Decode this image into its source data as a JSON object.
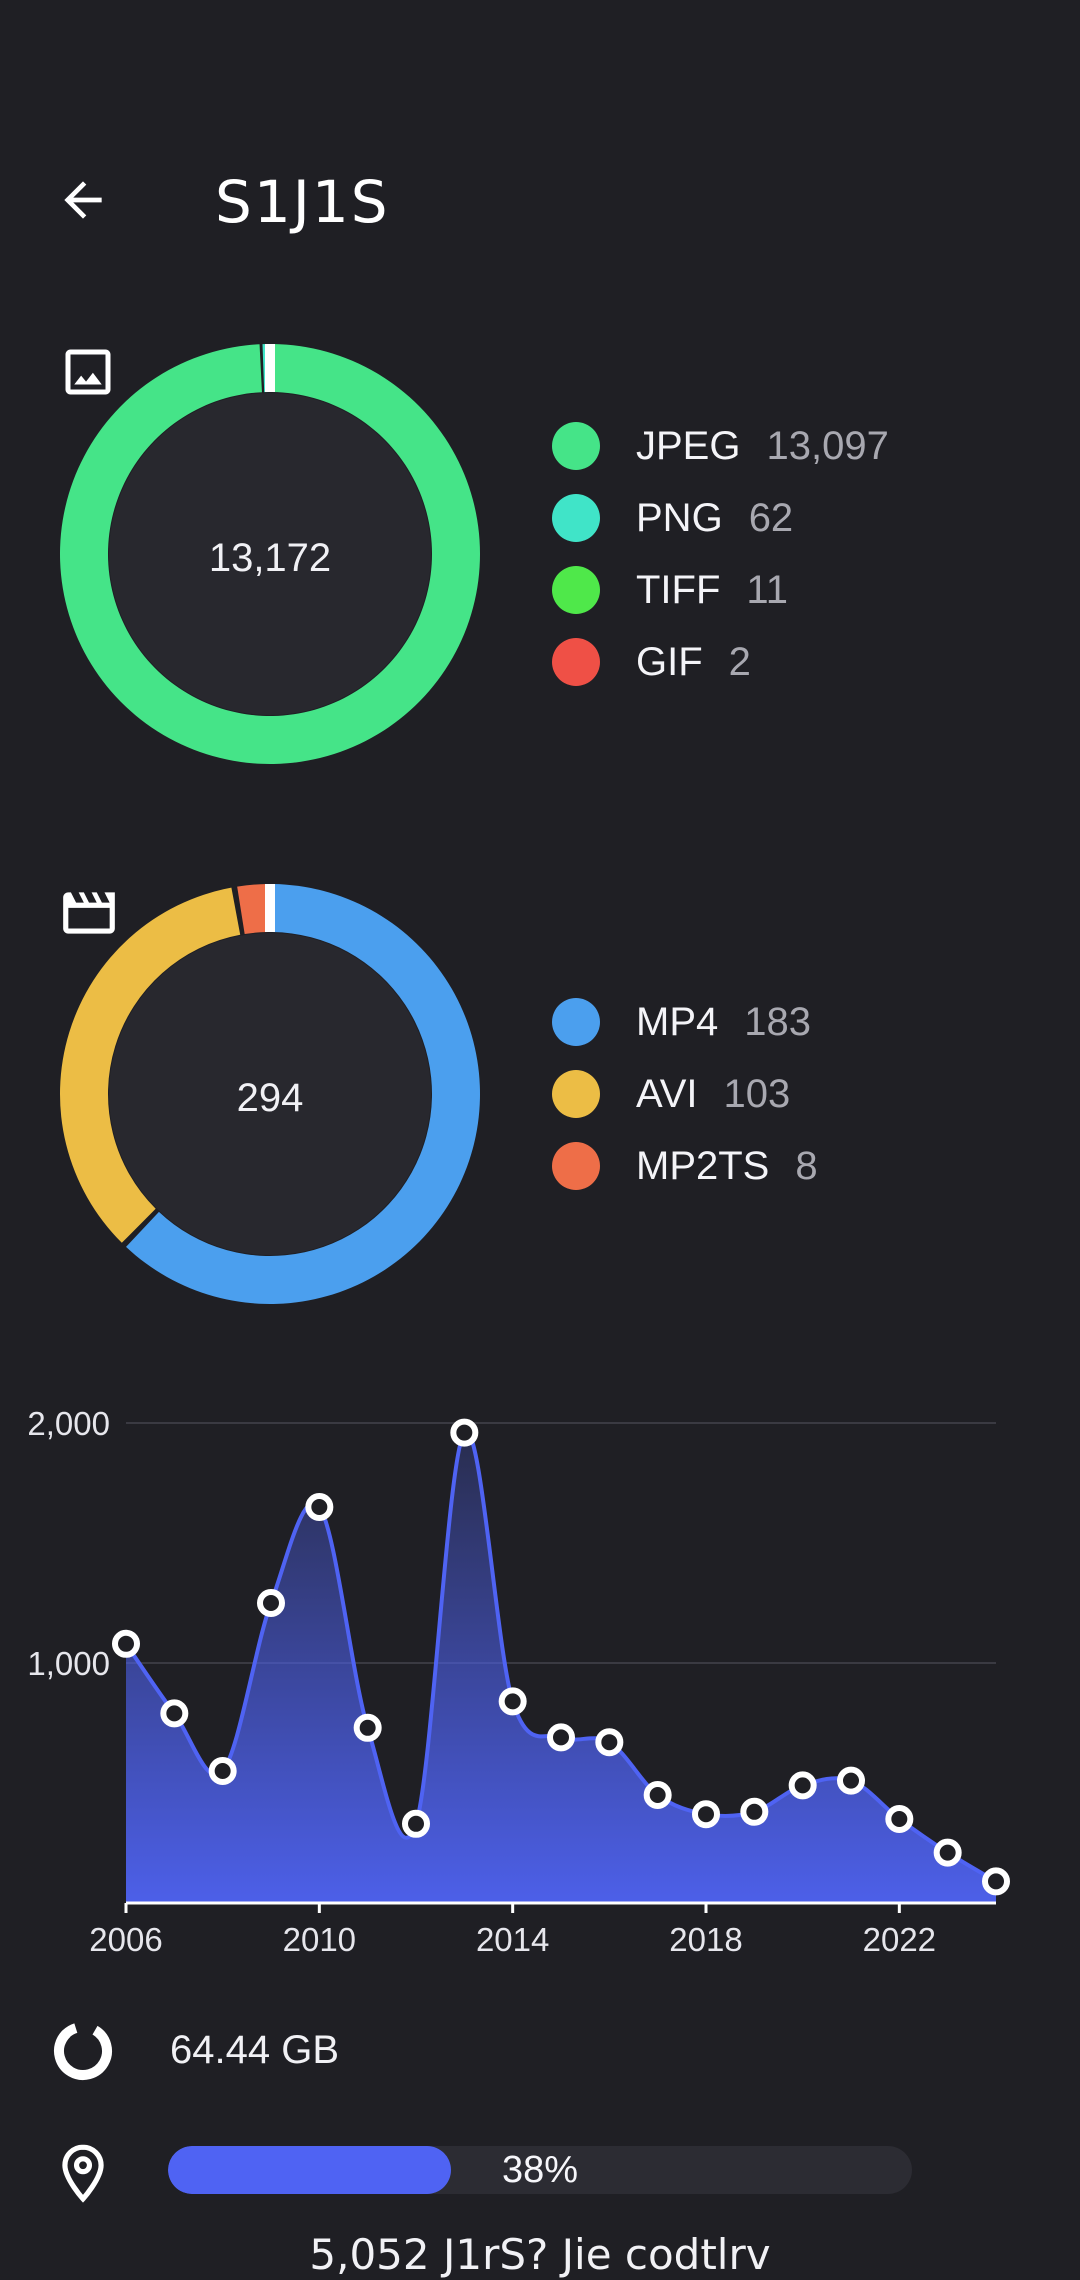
{
  "header": {
    "title": "S1J1S"
  },
  "images": {
    "total": "13,172",
    "icon": "image-icon",
    "items": [
      {
        "name": "JPEG",
        "count": "13,097",
        "value": 13097,
        "color": "#45e488"
      },
      {
        "name": "PNG",
        "count": "62",
        "value": 62,
        "color": "#40e4c8"
      },
      {
        "name": "TIFF",
        "count": "11",
        "value": 11,
        "color": "#4fe84a"
      },
      {
        "name": "GIF",
        "count": "2",
        "value": 2,
        "color": "#ef5046"
      }
    ]
  },
  "videos": {
    "total": "294",
    "icon": "clapperboard-icon",
    "items": [
      {
        "name": "MP4",
        "count": "183",
        "value": 183,
        "color": "#4b9fee"
      },
      {
        "name": "AVI",
        "count": "103",
        "value": 103,
        "color": "#ecbd45"
      },
      {
        "name": "MP2TS",
        "count": "8",
        "value": 8,
        "color": "#ee6e48"
      }
    ]
  },
  "chart_data": {
    "type": "area",
    "x": [
      2006,
      2007,
      2008,
      2009,
      2010,
      2011,
      2012,
      2013,
      2014,
      2015,
      2016,
      2017,
      2018,
      2019,
      2020,
      2021,
      2022,
      2023,
      2024
    ],
    "values": [
      1080,
      790,
      550,
      1250,
      1650,
      730,
      330,
      1960,
      840,
      690,
      670,
      450,
      370,
      380,
      490,
      510,
      350,
      210,
      90
    ],
    "xticks": [
      "2006",
      "2010",
      "2014",
      "2018",
      "2022"
    ],
    "yticks": [
      "2,000",
      "1,000"
    ],
    "ylim": [
      0,
      2000
    ],
    "grid": true,
    "color": "#4f63f3"
  },
  "storage": {
    "label": "64.44 GB",
    "icon": "storage-pie-icon"
  },
  "location": {
    "percent_label": "38%",
    "fraction": 0.38,
    "icon": "location-pin-icon"
  },
  "footer": {
    "text": "5,052 J1rS? Jie codtlrv"
  }
}
